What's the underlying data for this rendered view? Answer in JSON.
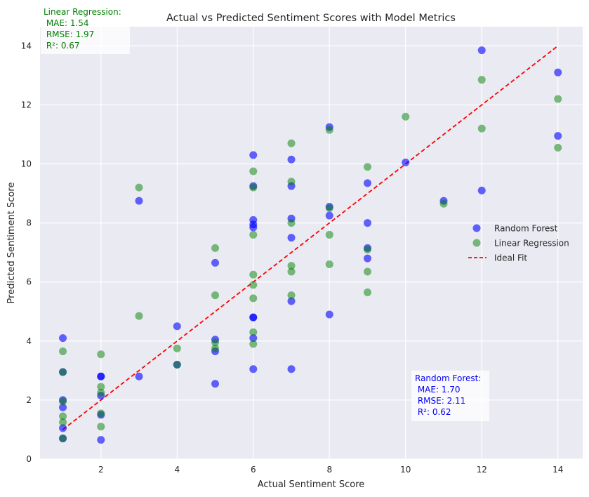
{
  "chart_data": {
    "type": "scatter",
    "title": "Actual vs Predicted Sentiment Scores with Model Metrics",
    "xlabel": "Actual Sentiment Score",
    "ylabel": "Predicted Sentiment Score",
    "xlim": [
      0.4,
      14.65
    ],
    "ylim": [
      0,
      14.65
    ],
    "xticks": [
      2,
      4,
      6,
      8,
      10,
      12,
      14
    ],
    "yticks": [
      0,
      2,
      4,
      6,
      8,
      10,
      12,
      14
    ],
    "grid": true,
    "legend_position": "center-right",
    "series": [
      {
        "name": "Random Forest",
        "color": "#0000ff",
        "points": [
          [
            1,
            4.1
          ],
          [
            1,
            2.95
          ],
          [
            1,
            2.0
          ],
          [
            1,
            1.75
          ],
          [
            1,
            1.05
          ],
          [
            1,
            0.7
          ],
          [
            2,
            2.8
          ],
          [
            2,
            2.8
          ],
          [
            2,
            2.15
          ],
          [
            2,
            1.5
          ],
          [
            2,
            0.65
          ],
          [
            3,
            8.75
          ],
          [
            3,
            2.8
          ],
          [
            4,
            4.5
          ],
          [
            4,
            3.2
          ],
          [
            5,
            6.65
          ],
          [
            5,
            4.05
          ],
          [
            5,
            3.65
          ],
          [
            5,
            2.55
          ],
          [
            6,
            10.3
          ],
          [
            6,
            9.25
          ],
          [
            6,
            8.1
          ],
          [
            6,
            7.95
          ],
          [
            6,
            7.85
          ],
          [
            6,
            4.8
          ],
          [
            6,
            4.8
          ],
          [
            6,
            4.1
          ],
          [
            6,
            3.05
          ],
          [
            7,
            10.15
          ],
          [
            7,
            9.25
          ],
          [
            7,
            8.15
          ],
          [
            7,
            7.5
          ],
          [
            7,
            5.35
          ],
          [
            7,
            3.05
          ],
          [
            8,
            11.25
          ],
          [
            8,
            8.55
          ],
          [
            8,
            8.25
          ],
          [
            8,
            4.9
          ],
          [
            9,
            9.35
          ],
          [
            9,
            8.0
          ],
          [
            9,
            7.15
          ],
          [
            9,
            6.8
          ],
          [
            10,
            10.05
          ],
          [
            11,
            8.75
          ],
          [
            12,
            13.85
          ],
          [
            12,
            9.1
          ],
          [
            14,
            13.1
          ],
          [
            14,
            10.95
          ]
        ]
      },
      {
        "name": "Linear Regression",
        "color": "#008000",
        "points": [
          [
            1,
            3.65
          ],
          [
            1,
            2.95
          ],
          [
            1,
            1.95
          ],
          [
            1,
            1.45
          ],
          [
            1,
            1.25
          ],
          [
            1,
            0.7
          ],
          [
            2,
            3.55
          ],
          [
            2,
            2.45
          ],
          [
            2,
            2.25
          ],
          [
            2,
            1.55
          ],
          [
            2,
            1.1
          ],
          [
            3,
            9.2
          ],
          [
            3,
            4.85
          ],
          [
            4,
            3.75
          ],
          [
            4,
            3.2
          ],
          [
            5,
            7.15
          ],
          [
            5,
            5.55
          ],
          [
            5,
            3.95
          ],
          [
            5,
            3.75
          ],
          [
            6,
            9.75
          ],
          [
            6,
            9.2
          ],
          [
            6,
            7.6
          ],
          [
            6,
            6.25
          ],
          [
            6,
            5.9
          ],
          [
            6,
            5.45
          ],
          [
            6,
            4.3
          ],
          [
            6,
            3.9
          ],
          [
            7,
            10.7
          ],
          [
            7,
            9.4
          ],
          [
            7,
            8.0
          ],
          [
            7,
            6.55
          ],
          [
            7,
            6.35
          ],
          [
            7,
            5.55
          ],
          [
            8,
            11.15
          ],
          [
            8,
            8.5
          ],
          [
            8,
            7.6
          ],
          [
            8,
            6.6
          ],
          [
            9,
            9.9
          ],
          [
            9,
            7.1
          ],
          [
            9,
            6.35
          ],
          [
            9,
            5.65
          ],
          [
            10,
            11.6
          ],
          [
            11,
            8.65
          ],
          [
            12,
            12.85
          ],
          [
            12,
            11.2
          ],
          [
            14,
            12.2
          ],
          [
            14,
            10.55
          ]
        ]
      }
    ],
    "ideal_fit": {
      "name": "Ideal Fit",
      "color": "#ff0000",
      "from": [
        1,
        1
      ],
      "to": [
        14,
        14
      ]
    },
    "annotations": {
      "linear_regression": {
        "color": "#008000",
        "lines": [
          "Linear Regression:",
          " MAE: 1.54",
          " RMSE: 1.97",
          " R²: 0.67"
        ]
      },
      "random_forest": {
        "color": "#0000ff",
        "lines": [
          "Random Forest:",
          " MAE: 1.70",
          " RMSE: 2.11",
          " R²: 0.62"
        ]
      }
    }
  }
}
